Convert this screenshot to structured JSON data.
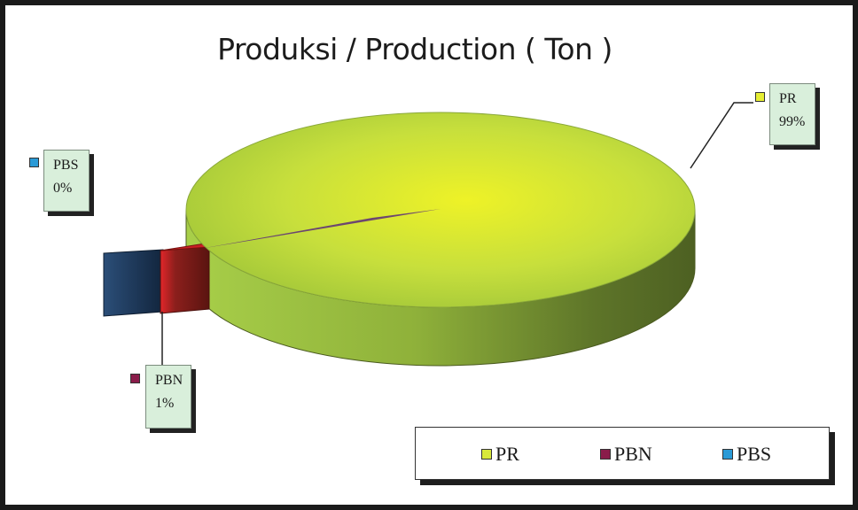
{
  "chart_data": {
    "type": "pie",
    "title": "Produksi / Production ( Ton )",
    "categories": [
      "PR",
      "PBN",
      "PBS"
    ],
    "values": [
      99,
      1,
      0
    ],
    "labels": [
      "99%",
      "1%",
      "0%"
    ],
    "legend_position": "bottom-right",
    "colors": {
      "PR": "#c9e22a",
      "PBN": "#d8242a",
      "PBS": "#1e3a5c"
    },
    "legend_swatch_colors": {
      "PR": "#d8e83a",
      "PBN": "#8a1c4a",
      "PBS": "#2a9ad6"
    }
  }
}
